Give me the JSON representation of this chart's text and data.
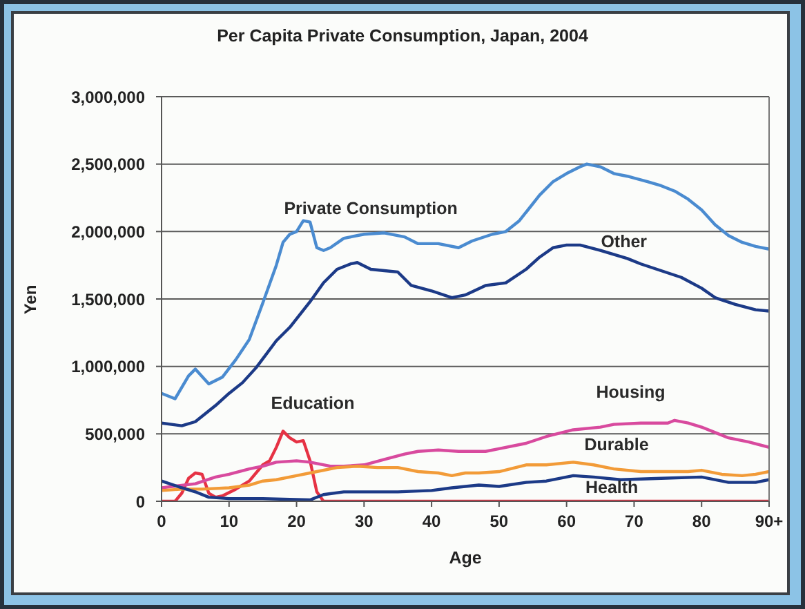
{
  "chart_data": {
    "type": "line",
    "title": "Per Capita Private Consumption, Japan, 2004",
    "xlabel": "Age",
    "ylabel": "Yen",
    "xlim": [
      0,
      90
    ],
    "xticks": [
      0,
      10,
      20,
      30,
      40,
      50,
      60,
      70,
      80,
      {
        "value": 90,
        "label": "90+"
      }
    ],
    "ylim": [
      0,
      3000000
    ],
    "yticks": [
      0,
      {
        "value": 500000,
        "label": "500,000"
      },
      {
        "value": 1000000,
        "label": "1,000,000"
      },
      {
        "value": 1500000,
        "label": "1,500,000"
      },
      {
        "value": 2000000,
        "label": "2,000,000"
      },
      {
        "value": 2500000,
        "label": "2,500,000"
      },
      {
        "value": 3000000,
        "label": "3,000,000"
      }
    ],
    "grid": "y",
    "series": [
      {
        "name": "Private Consumption",
        "color": "#4a8bd0",
        "x": [
          0,
          2,
          4,
          5,
          7,
          9,
          11,
          13,
          15,
          17,
          18,
          19,
          20,
          21,
          22,
          23,
          24,
          25,
          27,
          30,
          33,
          36,
          38,
          41,
          44,
          46,
          49,
          51,
          53,
          56,
          58,
          60,
          62,
          63,
          65,
          67,
          69,
          72,
          74,
          76,
          78,
          80,
          82,
          84,
          86,
          88,
          90
        ],
        "values": [
          800000,
          760000,
          930000,
          980000,
          870000,
          920000,
          1050000,
          1200000,
          1470000,
          1750000,
          1920000,
          1980000,
          2000000,
          2080000,
          2070000,
          1880000,
          1860000,
          1880000,
          1950000,
          1980000,
          1990000,
          1960000,
          1910000,
          1910000,
          1880000,
          1930000,
          1980000,
          2000000,
          2080000,
          2270000,
          2370000,
          2430000,
          2480000,
          2500000,
          2480000,
          2430000,
          2410000,
          2370000,
          2340000,
          2300000,
          2240000,
          2160000,
          2050000,
          1970000,
          1920000,
          1890000,
          1870000
        ]
      },
      {
        "name": "Other",
        "color": "#1c3a87",
        "x": [
          0,
          3,
          5,
          8,
          10,
          12,
          14,
          17,
          19,
          22,
          24,
          26,
          28,
          29,
          31,
          33,
          35,
          37,
          40,
          43,
          45,
          48,
          51,
          54,
          56,
          58,
          60,
          62,
          65,
          69,
          71,
          74,
          77,
          80,
          82,
          85,
          88,
          90
        ],
        "values": [
          580000,
          560000,
          590000,
          710000,
          800000,
          880000,
          990000,
          1190000,
          1290000,
          1480000,
          1620000,
          1720000,
          1760000,
          1770000,
          1720000,
          1710000,
          1700000,
          1600000,
          1560000,
          1510000,
          1530000,
          1600000,
          1620000,
          1720000,
          1810000,
          1880000,
          1900000,
          1900000,
          1860000,
          1800000,
          1760000,
          1710000,
          1660000,
          1580000,
          1510000,
          1460000,
          1420000,
          1410000
        ]
      },
      {
        "name": "Education",
        "color": "#e63244",
        "x": [
          0,
          2,
          3,
          4,
          5,
          6,
          7,
          8,
          9,
          11,
          13,
          15,
          16,
          17,
          18,
          19,
          20,
          21,
          22,
          23,
          24,
          90
        ],
        "values": [
          0,
          0,
          60000,
          170000,
          210000,
          200000,
          60000,
          30000,
          40000,
          90000,
          150000,
          270000,
          300000,
          400000,
          520000,
          470000,
          440000,
          450000,
          300000,
          70000,
          0,
          0
        ]
      },
      {
        "name": "Housing",
        "color": "#d84a9e",
        "x": [
          0,
          5,
          8,
          10,
          13,
          15,
          17,
          20,
          22,
          25,
          27,
          30,
          33,
          36,
          38,
          41,
          44,
          48,
          50,
          54,
          57,
          61,
          65,
          67,
          71,
          75,
          76,
          78,
          80,
          82,
          84,
          87,
          90
        ],
        "values": [
          100000,
          130000,
          180000,
          200000,
          240000,
          260000,
          290000,
          300000,
          290000,
          260000,
          260000,
          270000,
          310000,
          350000,
          370000,
          380000,
          370000,
          370000,
          390000,
          430000,
          480000,
          530000,
          550000,
          570000,
          580000,
          580000,
          600000,
          580000,
          550000,
          510000,
          470000,
          440000,
          400000
        ]
      },
      {
        "name": "Durable",
        "color": "#f29b38",
        "x": [
          0,
          3,
          6,
          10,
          13,
          15,
          17,
          20,
          23,
          26,
          29,
          32,
          35,
          38,
          41,
          43,
          45,
          47,
          50,
          54,
          57,
          61,
          64,
          67,
          71,
          74,
          78,
          80,
          83,
          86,
          88,
          90
        ],
        "values": [
          80000,
          90000,
          90000,
          100000,
          120000,
          150000,
          160000,
          190000,
          220000,
          250000,
          260000,
          250000,
          250000,
          220000,
          210000,
          190000,
          210000,
          210000,
          220000,
          270000,
          270000,
          290000,
          270000,
          240000,
          220000,
          220000,
          220000,
          230000,
          200000,
          190000,
          200000,
          220000
        ]
      },
      {
        "name": "Health",
        "color": "#1c3a87",
        "x": [
          0,
          3,
          5,
          7,
          10,
          15,
          22,
          24,
          27,
          30,
          35,
          40,
          43,
          47,
          50,
          54,
          57,
          61,
          64,
          68,
          74,
          80,
          84,
          88,
          90
        ],
        "values": [
          150000,
          100000,
          70000,
          30000,
          20000,
          20000,
          10000,
          50000,
          70000,
          70000,
          70000,
          80000,
          100000,
          120000,
          110000,
          140000,
          150000,
          190000,
          180000,
          160000,
          170000,
          180000,
          140000,
          140000,
          160000
        ]
      }
    ]
  }
}
